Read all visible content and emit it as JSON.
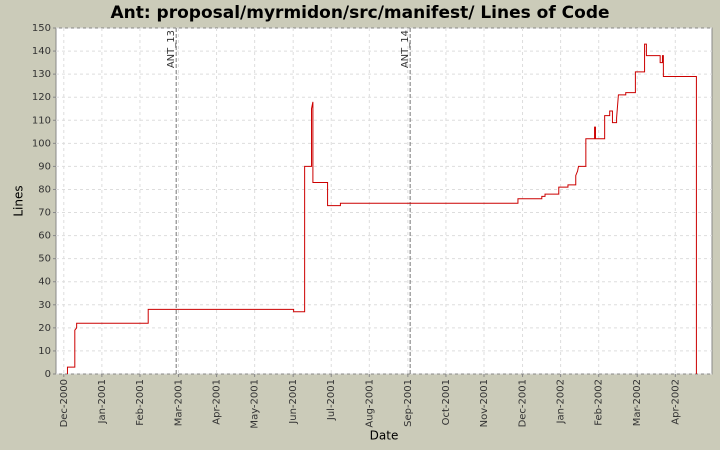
{
  "chart_data": {
    "type": "line",
    "title": "Ant: proposal/myrmidon/src/manifest/ Lines of Code",
    "x_label": "Date",
    "y_label": "Lines",
    "grid": true,
    "xlim": [
      2000.9,
      2002.33
    ],
    "ylim": [
      0,
      150
    ],
    "yticks": [
      0,
      10,
      20,
      30,
      40,
      50,
      60,
      70,
      80,
      90,
      100,
      110,
      120,
      130,
      140,
      150
    ],
    "xticks": [
      {
        "value": 2000.917,
        "label": "Dec-2000"
      },
      {
        "value": 2001.0,
        "label": "Jan-2001"
      },
      {
        "value": 2001.083,
        "label": "Feb-2001"
      },
      {
        "value": 2001.167,
        "label": "Mar-2001"
      },
      {
        "value": 2001.25,
        "label": "Apr-2001"
      },
      {
        "value": 2001.333,
        "label": "May-2001"
      },
      {
        "value": 2001.417,
        "label": "Jun-2001"
      },
      {
        "value": 2001.5,
        "label": "Jul-2001"
      },
      {
        "value": 2001.583,
        "label": "Aug-2001"
      },
      {
        "value": 2001.667,
        "label": "Sep-2001"
      },
      {
        "value": 2001.75,
        "label": "Oct-2001"
      },
      {
        "value": 2001.833,
        "label": "Nov-2001"
      },
      {
        "value": 2001.917,
        "label": "Dec-2001"
      },
      {
        "value": 2002.0,
        "label": "Jan-2002"
      },
      {
        "value": 2002.083,
        "label": "Feb-2002"
      },
      {
        "value": 2002.167,
        "label": "Mar-2002"
      },
      {
        "value": 2002.25,
        "label": "Apr-2002"
      }
    ],
    "markers": [
      {
        "label": "ANT_13",
        "x": 2001.162
      },
      {
        "label": "ANT_14",
        "x": 2001.672
      }
    ],
    "series": [
      {
        "color": "#cc0000",
        "x": [
          2000.925,
          2000.925,
          2000.941,
          2000.941,
          2000.945,
          2000.945,
          2001.101,
          2001.101,
          2001.418,
          2001.418,
          2001.442,
          2001.442,
          2001.457,
          2001.457,
          2001.46,
          2001.46,
          2001.492,
          2001.492,
          2001.52,
          2001.52,
          2001.907,
          2001.907,
          2001.959,
          2001.959,
          2001.966,
          2001.966,
          2001.996,
          2001.996,
          2002.016,
          2002.016,
          2002.033,
          2002.033,
          2002.037,
          2002.039,
          2002.055,
          2002.055,
          2002.074,
          2002.074,
          2002.076,
          2002.076,
          2002.096,
          2002.096,
          2002.107,
          2002.107,
          2002.113,
          2002.113,
          2002.122,
          2002.122,
          2002.126,
          2002.142,
          2002.142,
          2002.163,
          2002.163,
          2002.183,
          2002.183,
          2002.187,
          2002.187,
          2002.217,
          2002.217,
          2002.222,
          2002.222,
          2002.224,
          2002.224,
          2002.296,
          2002.296
        ],
        "values": [
          0,
          3,
          3,
          19,
          20,
          22,
          22,
          28,
          28,
          27,
          27,
          90,
          90,
          115,
          118,
          83,
          83,
          73,
          73,
          74,
          74,
          76,
          76,
          77,
          77,
          78,
          78,
          81,
          81,
          82,
          82,
          86,
          88,
          90,
          90,
          102,
          102,
          107,
          107,
          102,
          102,
          112,
          112,
          114,
          114,
          109,
          109,
          111,
          121,
          121,
          122,
          122,
          131,
          131,
          143,
          143,
          138,
          138,
          135,
          135,
          138,
          138,
          129,
          129,
          0
        ]
      }
    ]
  }
}
